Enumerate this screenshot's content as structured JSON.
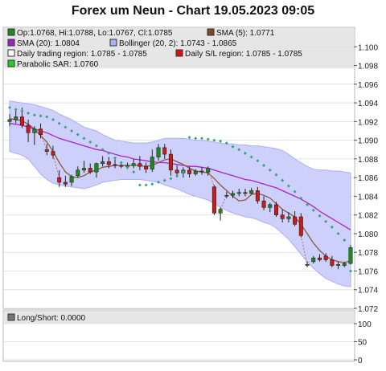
{
  "title": "Forex um Neun - Chart 19.05.2023 09:05",
  "legend": [
    {
      "label": "Op:1.0768, Hi:1.0788, Lo:1.0767, Cl:1.0785",
      "color": "#228822"
    },
    {
      "label": "SMA (5): 1.0771",
      "color": "#7a4a2a"
    },
    {
      "label": "SMA (20): 1.0804",
      "color": "#a020c0"
    },
    {
      "label": "Bollinger (20, 2): 1.0743 - 1.0865",
      "color": "#aab0f0"
    },
    {
      "label": "Daily trading region: 1.0785 - 1.0785",
      "color": "#ffffff"
    },
    {
      "label": "Daily S/L region: 1.0785 - 1.0785",
      "color": "#dd1111"
    },
    {
      "label": "Parabolic SAR: 1.0760",
      "color": "#22cc22"
    }
  ],
  "sub_legend": [
    {
      "label": "Long/Short: 0.0000",
      "color": "#777777"
    }
  ],
  "chart_data": [
    {
      "type": "candlestick",
      "title": "Forex um Neun - Chart 19.05.2023 09:05",
      "ylim": [
        1.072,
        1.102
      ],
      "y_ticks": [
        "1.072",
        "1.074",
        "1.076",
        "1.078",
        "1.080",
        "1.082",
        "1.084",
        "1.086",
        "1.088",
        "1.090",
        "1.092",
        "1.094",
        "1.096",
        "1.098",
        "1.100"
      ],
      "grid": true,
      "legend_position": "top",
      "candles": [
        [
          1.092,
          1.0928,
          1.0915,
          1.0922
        ],
        [
          1.0922,
          1.0932,
          1.0918,
          1.0925
        ],
        [
          1.0925,
          1.0935,
          1.0913,
          1.0916
        ],
        [
          1.0916,
          1.0922,
          1.0898,
          1.0908
        ],
        [
          1.0908,
          1.0915,
          1.0895,
          1.0912
        ],
        [
          1.0912,
          1.0918,
          1.0902,
          1.0906
        ],
        [
          1.089,
          1.0896,
          1.0884,
          1.0888
        ],
        [
          1.0888,
          1.0894,
          1.088,
          1.0884
        ],
        [
          1.086,
          1.0868,
          1.085,
          1.0855
        ],
        [
          1.0855,
          1.0862,
          1.085,
          1.0853
        ],
        [
          1.0855,
          1.0863,
          1.0851,
          1.0861
        ],
        [
          1.0862,
          1.0872,
          1.086,
          1.0868
        ],
        [
          1.0868,
          1.0878,
          1.0865,
          1.087
        ],
        [
          1.087,
          1.0875,
          1.0864,
          1.0866
        ],
        [
          1.0866,
          1.0876,
          1.086,
          1.0875
        ],
        [
          1.0875,
          1.0883,
          1.0872,
          1.0877
        ],
        [
          1.0877,
          1.0882,
          1.087,
          1.0874
        ],
        [
          1.0874,
          1.088,
          1.087,
          1.0873
        ],
        [
          1.0873,
          1.0877,
          1.087,
          1.0872
        ],
        [
          1.0872,
          1.0876,
          1.0869,
          1.0873
        ],
        [
          1.0873,
          1.088,
          1.087,
          1.0875
        ],
        [
          1.0875,
          1.0883,
          1.0868,
          1.0872
        ],
        [
          1.0872,
          1.0876,
          1.0865,
          1.0869
        ],
        [
          1.0869,
          1.089,
          1.0866,
          1.0882
        ],
        [
          1.0882,
          1.0896,
          1.0878,
          1.0892
        ],
        [
          1.0892,
          1.0896,
          1.088,
          1.0885
        ],
        [
          1.0885,
          1.089,
          1.0862,
          1.0868
        ],
        [
          1.0868,
          1.0873,
          1.086,
          1.0865
        ],
        [
          1.0865,
          1.0871,
          1.086,
          1.0868
        ],
        [
          1.0868,
          1.0872,
          1.086,
          1.0864
        ],
        [
          1.0864,
          1.0869,
          1.0862,
          1.0867
        ],
        [
          1.0867,
          1.0871,
          1.0863,
          1.0866
        ],
        [
          1.0866,
          1.0872,
          1.0862,
          1.087
        ],
        [
          1.085,
          1.0852,
          1.082,
          1.0822
        ],
        [
          1.0822,
          1.0828,
          1.0814,
          1.0826
        ],
        [
          1.0841,
          1.0845,
          1.0838,
          1.0841
        ],
        [
          1.0841,
          1.0846,
          1.0838,
          1.0843
        ],
        [
          1.0843,
          1.0848,
          1.084,
          1.0844
        ],
        [
          1.0844,
          1.0848,
          1.084,
          1.0843
        ],
        [
          1.0843,
          1.0849,
          1.0842,
          1.0846
        ],
        [
          1.0846,
          1.085,
          1.0832,
          1.0835
        ],
        [
          1.0835,
          1.084,
          1.0825,
          1.0828
        ],
        [
          1.0828,
          1.0833,
          1.0823,
          1.0831
        ],
        [
          1.0831,
          1.0834,
          1.0818,
          1.082
        ],
        [
          1.082,
          1.0826,
          1.0812,
          1.0816
        ],
        [
          1.0816,
          1.0823,
          1.0812,
          1.0818
        ],
        [
          1.0818,
          1.0824,
          1.0808,
          1.081
        ],
        [
          1.0818,
          1.0822,
          1.0796,
          1.0798
        ],
        [
          1.0766,
          1.077,
          1.0764,
          1.0767
        ],
        [
          1.077,
          1.0776,
          1.0768,
          1.0774
        ],
        [
          1.0774,
          1.0778,
          1.077,
          1.0772
        ],
        [
          1.0776,
          1.0779,
          1.077,
          1.0772
        ],
        [
          1.0772,
          1.0776,
          1.0764,
          1.0766
        ],
        [
          1.0766,
          1.077,
          1.0762,
          1.0767
        ],
        [
          1.0766,
          1.077,
          1.0764,
          1.0768
        ],
        [
          1.0768,
          1.0788,
          1.0767,
          1.0785
        ]
      ],
      "series": [
        {
          "name": "SMA (5)",
          "values": [
            1.0923,
            1.0922,
            1.0921,
            1.0917,
            1.0912,
            1.0905,
            1.0898,
            1.0888,
            1.0876,
            1.0866,
            1.0861,
            1.086,
            1.0862,
            1.0866,
            1.0868,
            1.0871,
            1.0872,
            1.0873,
            1.0873,
            1.0873,
            1.0873,
            1.0873,
            1.0872,
            1.0873,
            1.0876,
            1.0879,
            1.088,
            1.0877,
            1.0874,
            1.087,
            1.0867,
            1.0866,
            1.0865,
            1.0859,
            1.0852,
            1.0846,
            1.084,
            1.0835,
            1.0836,
            1.0842,
            1.0843,
            1.0841,
            1.0838,
            1.0832,
            1.0826,
            1.0822,
            1.0818,
            1.081,
            1.08,
            1.079,
            1.0782,
            1.0776,
            1.0772,
            1.077,
            1.0769,
            1.0771
          ]
        },
        {
          "name": "SMA (20)",
          "values": [
            1.0918,
            1.0917,
            1.0916,
            1.0914,
            1.0912,
            1.091,
            1.0908,
            1.0905,
            1.0902,
            1.09,
            1.0898,
            1.0896,
            1.0894,
            1.0892,
            1.089,
            1.0889,
            1.0887,
            1.0885,
            1.0883,
            1.0882,
            1.088,
            1.0879,
            1.0878,
            1.0877,
            1.0876,
            1.0876,
            1.0875,
            1.0874,
            1.0873,
            1.0872,
            1.0872,
            1.0871,
            1.087,
            1.0868,
            1.0866,
            1.0864,
            1.0862,
            1.086,
            1.0858,
            1.0857,
            1.0855,
            1.0853,
            1.0851,
            1.0849,
            1.0846,
            1.0843,
            1.084,
            1.0837,
            1.0833,
            1.0829,
            1.0824,
            1.082,
            1.0816,
            1.0812,
            1.0808,
            1.0804
          ]
        },
        {
          "name": "Bollinger upper",
          "values": [
            1.0942,
            1.0941,
            1.094,
            1.0939,
            1.0938,
            1.0936,
            1.0934,
            1.0932,
            1.0928,
            1.0925,
            1.0922,
            1.0918,
            1.0914,
            1.0912,
            1.091,
            1.0906,
            1.0903,
            1.09,
            1.0899,
            1.0898,
            1.0897,
            1.0897,
            1.0897,
            1.0898,
            1.09,
            1.0902,
            1.0902,
            1.0902,
            1.0902,
            1.0901,
            1.09,
            1.09,
            1.0899,
            1.0898,
            1.0897,
            1.0896,
            1.0896,
            1.0895,
            1.0895,
            1.0894,
            1.0894,
            1.0893,
            1.0892,
            1.0891,
            1.0889,
            1.0885,
            1.088,
            1.0876,
            1.0872,
            1.0869,
            1.0868,
            1.0868,
            1.0867,
            1.0867,
            1.0866,
            1.0865
          ]
        },
        {
          "name": "Bollinger lower",
          "values": [
            1.0888,
            1.0886,
            1.0884,
            1.088,
            1.0872,
            1.0864,
            1.0858,
            1.0854,
            1.0852,
            1.0851,
            1.085,
            1.0849,
            1.0848,
            1.085,
            1.0852,
            1.0855,
            1.0856,
            1.0857,
            1.0858,
            1.0858,
            1.0858,
            1.0858,
            1.0857,
            1.0856,
            1.0855,
            1.0852,
            1.085,
            1.0848,
            1.0845,
            1.0842,
            1.084,
            1.0838,
            1.0836,
            1.0832,
            1.0828,
            1.0825,
            1.0822,
            1.082,
            1.0818,
            1.0817,
            1.0815,
            1.0812,
            1.081,
            1.0806,
            1.08,
            1.0794,
            1.0786,
            1.0778,
            1.077,
            1.0763,
            1.0757,
            1.0752,
            1.0749,
            1.0746,
            1.0744,
            1.0743
          ]
        },
        {
          "name": "Parabolic SAR",
          "values": [
            1.0935,
            1.0933,
            1.0931,
            1.0929,
            1.0927,
            1.0926,
            1.0925,
            1.0922,
            1.0918,
            1.0914,
            1.091,
            1.0906,
            1.0902,
            1.0898,
            1.0894,
            1.089,
            1.0886,
            1.0881,
            1.0876,
            1.0871,
            1.0866,
            1.0852,
            1.0852,
            1.0853,
            1.0855,
            1.0857,
            1.0859,
            1.0862,
            1.0866,
            1.0903,
            1.0902,
            1.0902,
            1.0901,
            1.09,
            1.0899,
            1.0897,
            1.0893,
            1.089,
            1.0886,
            1.0882,
            1.0878,
            1.0873,
            1.0868,
            1.0863,
            1.0857,
            1.0851,
            1.0845,
            1.0838,
            1.0831,
            1.0825,
            1.0819,
            1.0813,
            1.0807,
            1.08,
            1.0793,
            1.076
          ]
        }
      ]
    },
    {
      "type": "line",
      "title": "Long/Short: 0.0000",
      "ylim": [
        0,
        100
      ],
      "y_ticks": [
        "0",
        "50",
        "100"
      ],
      "grid": true,
      "values": []
    }
  ]
}
